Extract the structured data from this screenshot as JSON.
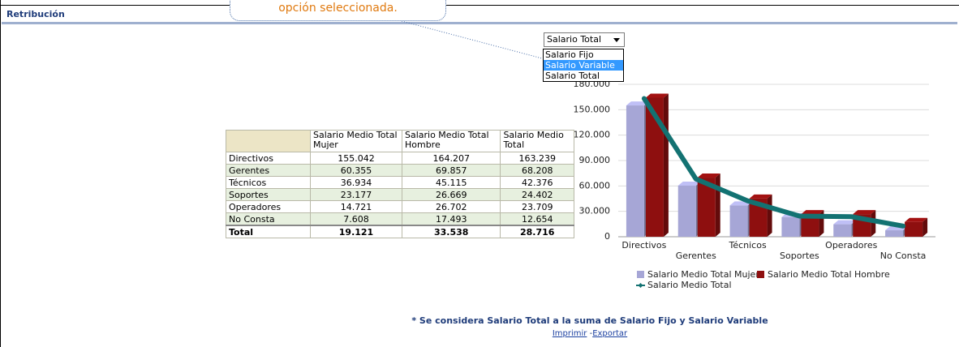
{
  "header": {
    "title": "Retribución"
  },
  "callout": {
    "text": "opción seleccionada."
  },
  "dropdown": {
    "selected": "Salario Total",
    "options": [
      "Salario Fijo",
      "Salario Variable",
      "Salario Total"
    ],
    "highlighted": 1
  },
  "table": {
    "columns": [
      "Salario Medio Total Mujer",
      "Salario Medio Total Hombre",
      "Salario Medio Total"
    ],
    "rows": [
      [
        "Directivos",
        "155.042",
        "164.207",
        "163.239"
      ],
      [
        "Gerentes",
        "60.355",
        "69.857",
        "68.208"
      ],
      [
        "Técnicos",
        "36.934",
        "45.115",
        "42.376"
      ],
      [
        "Soportes",
        "23.177",
        "26.669",
        "24.402"
      ],
      [
        "Operadores",
        "14.721",
        "26.702",
        "23.709"
      ],
      [
        "No Consta",
        "7.608",
        "17.493",
        "12.654"
      ]
    ],
    "total": [
      "Total",
      "19.121",
      "33.538",
      "28.716"
    ]
  },
  "chart_data": {
    "type": "bar",
    "categories": [
      "Directivos",
      "Gerentes",
      "Técnicos",
      "Soportes",
      "Operadores",
      "No Consta"
    ],
    "series": [
      {
        "name": "Salario Medio Total Mujer",
        "color": "#a6a6d6",
        "values": [
          155042,
          60355,
          36934,
          23177,
          14721,
          7608
        ]
      },
      {
        "name": "Salario Medio Total Hombre",
        "color": "#8e0f0f",
        "values": [
          164207,
          69857,
          45115,
          26669,
          26702,
          17493
        ]
      },
      {
        "name": "Salario Medio Total",
        "color": "#137272",
        "type": "line",
        "values": [
          163239,
          68208,
          42376,
          24402,
          23709,
          12654
        ]
      }
    ],
    "ylim": [
      0,
      180000
    ],
    "yticks": [
      0,
      {
        "value": 30000,
        "label": "30.000"
      },
      {
        "value": 60000,
        "label": "60.000"
      },
      {
        "value": 90000,
        "label": "90.000"
      },
      {
        "value": 120000,
        "label": "120.000"
      },
      {
        "value": 150000,
        "label": "150.000"
      },
      {
        "value": 180000,
        "label": "180.000"
      }
    ],
    "grid": true
  },
  "footnote": "* Se considera Salario Total a la suma de Salario Fijo y Salario Variable",
  "links": {
    "print": "Imprimir",
    "separator": "-",
    "export": "Exportar"
  }
}
